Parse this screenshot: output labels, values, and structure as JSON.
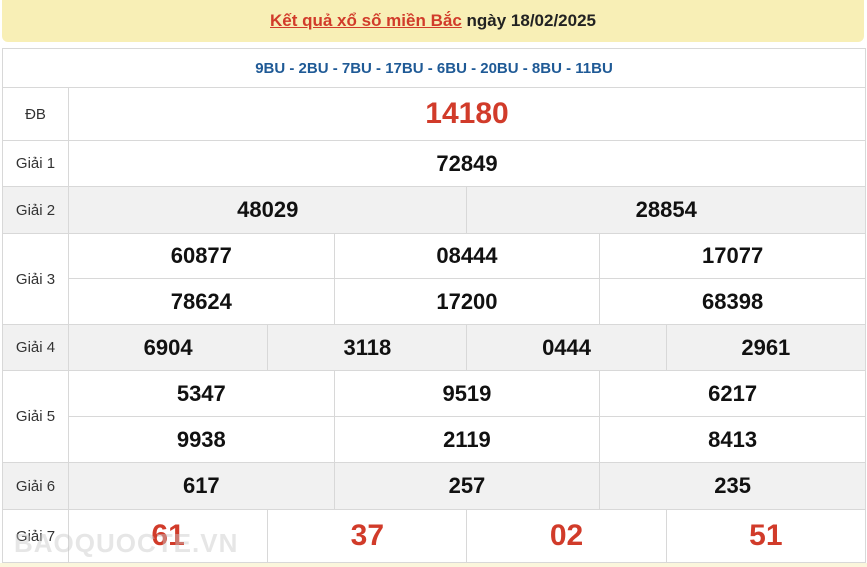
{
  "header": {
    "link": "Kết quả xổ số miền Bắc",
    "date": "ngày 18/02/2025"
  },
  "codes": "9BU - 2BU - 7BU - 17BU - 6BU - 20BU - 8BU - 11BU",
  "labels": {
    "db": "ĐB",
    "g1": "Giải 1",
    "g2": "Giải 2",
    "g3": "Giải 3",
    "g4": "Giải 4",
    "g5": "Giải 5",
    "g6": "Giải 6",
    "g7": "Giải 7"
  },
  "prizes": {
    "db": "14180",
    "g1": "72849",
    "g2": [
      "48029",
      "28854"
    ],
    "g3": [
      "60877",
      "08444",
      "17077",
      "78624",
      "17200",
      "68398"
    ],
    "g4": [
      "6904",
      "3118",
      "0444",
      "2961"
    ],
    "g5": [
      "5347",
      "9519",
      "6217",
      "9938",
      "2119",
      "8413"
    ],
    "g6": [
      "617",
      "257",
      "235"
    ],
    "g7": [
      "61",
      "37",
      "02",
      "51"
    ]
  },
  "watermark": "BAOQUOCTE.VN",
  "colors": {
    "accent_red": "#d13b2a",
    "code_blue": "#1f5a96",
    "header_bg": "#f8efb6"
  }
}
